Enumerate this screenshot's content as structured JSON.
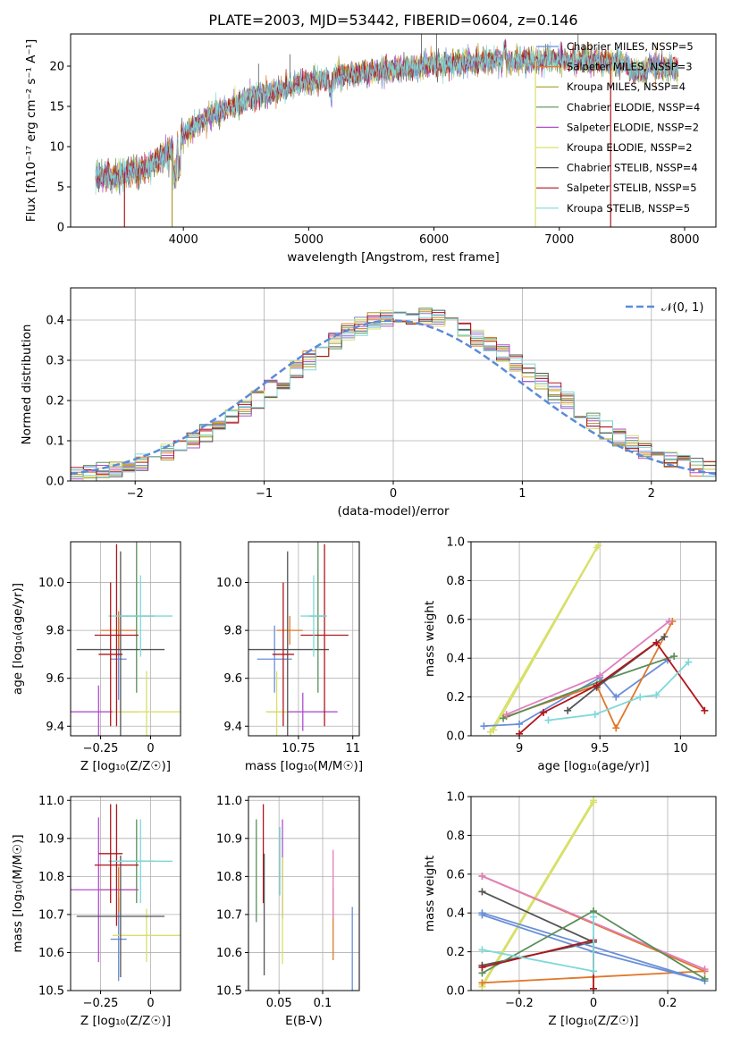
{
  "colors": {
    "chabrier_miles": "#6a8fd8",
    "salpeter_miles": "#e0782a",
    "kroupa_miles": "#a89a2c",
    "chabrier_elodie": "#5a8f5a",
    "salpeter_elodie": "#b04fcf",
    "kroupa_elodie": "#d8e06a",
    "chabrier_stelib": "#555555",
    "salpeter_stelib": "#b0171b",
    "kroupa_stelib": "#7fd8d8",
    "pink": "#e07fbf",
    "normal_curve": "#5b8bd8",
    "grid": "#b0b0b0"
  },
  "chart_data": [
    {
      "id": "spectrum",
      "type": "line",
      "title": "PLATE=2003, MJD=53442, FIBERID=0604, z=0.146",
      "xlabel": "wavelength [Angstrom, rest frame]",
      "ylabel": "Flux [fλ10⁻¹⁷ erg cm⁻² s⁻¹ A⁻¹]",
      "xlim": [
        3100,
        8250
      ],
      "ylim": [
        0,
        24
      ],
      "xticks": [
        4000,
        5000,
        6000,
        7000,
        8000
      ],
      "yticks": [
        0,
        5,
        10,
        15,
        20
      ],
      "grid": false,
      "legend_position": "upper-right",
      "legend": [
        "Chabrier MILES, NSSP=5",
        "Salpeter MILES, NSSP=3",
        "Kroupa MILES, NSSP=4",
        "Chabrier ELODIE, NSSP=4",
        "Salpeter ELODIE, NSSP=2",
        "Kroupa ELODIE, NSSP=2",
        "Chabrier STELIB, NSSP=4",
        "Salpeter STELIB, NSSP=5",
        "Kroupa STELIB, NSSP=5"
      ],
      "continuum": {
        "x": [
          3300,
          3500,
          3700,
          3900,
          4000,
          4200,
          4500,
          4800,
          5000,
          5200,
          5500,
          5800,
          6000,
          6200,
          6500,
          6800,
          7000,
          7300,
          7600,
          7800,
          8000
        ],
        "y": [
          6.2,
          6.5,
          7.4,
          9.5,
          11.5,
          13.8,
          15.8,
          17.3,
          18.0,
          18.6,
          19.3,
          19.8,
          20.1,
          20.4,
          20.6,
          20.7,
          20.8,
          20.6,
          20.3,
          19.9,
          19.6
        ]
      },
      "drop_lines_x": [
        3530,
        3910,
        6810,
        7410
      ],
      "spikes_x": [
        4600,
        4850,
        5900,
        6020,
        7150
      ]
    },
    {
      "id": "residuals",
      "type": "histogram",
      "xlabel": "(data-model)/error",
      "ylabel": "Normed distribution",
      "xlim": [
        -2.5,
        2.5
      ],
      "ylim": [
        0,
        0.48
      ],
      "xticks": [
        -2,
        -1,
        0,
        1,
        2
      ],
      "yticks": [
        0.0,
        0.1,
        0.2,
        0.3,
        0.4
      ],
      "grid": true,
      "bin_width": 0.1,
      "legend_position": "upper-right",
      "normal_label": "𝒩(0, 1)"
    },
    {
      "id": "z_vs_age",
      "type": "scatter",
      "xlabel": "Z [log₁₀(Z/Z☉)]",
      "ylabel": "age  [log₁₀(age/yr)]",
      "xlim": [
        -0.4,
        0.15
      ],
      "ylim": [
        9.36,
        10.17
      ],
      "xticks": [
        -0.25,
        0.0
      ],
      "yticks": [
        9.4,
        9.6,
        9.8,
        10.0
      ],
      "grid": true,
      "errorbars": [
        {
          "c": "chabrier_miles",
          "x": -0.16,
          "xerr": 0.04,
          "y": 9.68,
          "yerr": 0.17
        },
        {
          "c": "salpeter_miles",
          "x": -0.16,
          "xerr": 0.09,
          "y": 9.8,
          "yerr": 0.08
        },
        {
          "c": "chabrier_elodie",
          "x": -0.07,
          "xerr": 0.09,
          "y": 9.86,
          "yerr": 0.32
        },
        {
          "c": "salpeter_elodie",
          "x": -0.26,
          "xerr": 0.2,
          "y": 9.46,
          "yerr": 0.11
        },
        {
          "c": "kroupa_elodie",
          "x": -0.02,
          "xerr": 0.17,
          "y": 9.46,
          "yerr": 0.17
        },
        {
          "c": "chabrier_stelib",
          "x": -0.15,
          "xerr": 0.22,
          "y": 9.72,
          "yerr": 0.41
        },
        {
          "c": "salpeter_stelib",
          "x": -0.17,
          "xerr": 0.11,
          "y": 9.78,
          "yerr": 0.38
        },
        {
          "c": "kroupa_stelib",
          "x": -0.05,
          "xerr": 0.16,
          "y": 9.86,
          "yerr": 0.17
        },
        {
          "c": "salpeter_stelib",
          "x": -0.2,
          "xerr": 0.06,
          "y": 9.7,
          "yerr": 0.3
        }
      ]
    },
    {
      "id": "mass_vs_age",
      "type": "scatter",
      "xlabel": "mass [log₁₀(M/M☉)]",
      "ylabel": "",
      "xlim": [
        10.52,
        11.03
      ],
      "ylim": [
        9.36,
        10.17
      ],
      "xticks": [
        10.5,
        10.75,
        11.0
      ],
      "yticks": [
        9.4,
        9.6,
        9.8,
        10.0
      ],
      "grid": true,
      "errorbars": [
        {
          "c": "chabrier_miles",
          "x": 10.64,
          "xerr": 0.08,
          "y": 9.68,
          "yerr": 0.14
        },
        {
          "c": "salpeter_miles",
          "x": 10.71,
          "xerr": 0.06,
          "y": 9.8,
          "yerr": 0.06
        },
        {
          "c": "chabrier_elodie",
          "x": 10.84,
          "xerr": 0.04,
          "y": 9.86,
          "yerr": 0.32
        },
        {
          "c": "salpeter_elodie",
          "x": 10.77,
          "xerr": 0.16,
          "y": 9.46,
          "yerr": 0.08
        },
        {
          "c": "kroupa_elodie",
          "x": 10.65,
          "xerr": 0.05,
          "y": 9.46,
          "yerr": 0.17
        },
        {
          "c": "chabrier_stelib",
          "x": 10.7,
          "xerr": 0.19,
          "y": 9.72,
          "yerr": 0.41
        },
        {
          "c": "salpeter_stelib",
          "x": 10.87,
          "xerr": 0.11,
          "y": 9.78,
          "yerr": 0.38
        },
        {
          "c": "kroupa_stelib",
          "x": 10.82,
          "xerr": 0.06,
          "y": 9.86,
          "yerr": 0.17
        },
        {
          "c": "salpeter_stelib",
          "x": 10.68,
          "xerr": 0.05,
          "y": 9.7,
          "yerr": 0.3
        }
      ]
    },
    {
      "id": "age_vs_weight",
      "type": "line",
      "xlabel": "age  [log₁₀(age/yr)]",
      "ylabel": "mass weight",
      "xlim": [
        8.7,
        10.22
      ],
      "ylim": [
        0,
        1.0
      ],
      "xticks": [
        9.0,
        9.5,
        10.0
      ],
      "yticks": [
        0.0,
        0.2,
        0.4,
        0.6,
        0.8,
        1.0
      ],
      "grid": true,
      "series": [
        {
          "c": "kroupa_elodie",
          "x": [
            8.82,
            9.48
          ],
          "y": [
            0.02,
            0.97
          ]
        },
        {
          "c": "kroupa_elodie",
          "x": [
            8.84,
            9.49
          ],
          "y": [
            0.03,
            0.98
          ]
        },
        {
          "c": "chabrier_miles",
          "x": [
            8.78,
            9.0,
            9.5,
            9.6,
            9.92
          ],
          "y": [
            0.05,
            0.06,
            0.3,
            0.2,
            0.39
          ]
        },
        {
          "c": "salpeter_miles",
          "x": [
            8.92,
            9.48,
            9.6,
            9.95
          ],
          "y": [
            0.1,
            0.26,
            0.04,
            0.59
          ]
        },
        {
          "c": "chabrier_elodie",
          "x": [
            8.9,
            9.5,
            9.96
          ],
          "y": [
            0.09,
            0.28,
            0.41
          ]
        },
        {
          "c": "pink",
          "x": [
            8.92,
            9.5,
            9.93
          ],
          "y": [
            0.11,
            0.31,
            0.59
          ]
        },
        {
          "c": "chabrier_stelib",
          "x": [
            9.3,
            9.48,
            9.9
          ],
          "y": [
            0.13,
            0.25,
            0.51
          ]
        },
        {
          "c": "salpeter_stelib",
          "x": [
            9.0,
            9.15,
            9.48,
            9.85,
            10.15
          ],
          "y": [
            0.01,
            0.12,
            0.26,
            0.48,
            0.13
          ]
        },
        {
          "c": "kroupa_stelib",
          "x": [
            9.18,
            9.47,
            9.75,
            9.85,
            10.05
          ],
          "y": [
            0.08,
            0.11,
            0.2,
            0.21,
            0.38
          ]
        }
      ]
    },
    {
      "id": "z_vs_mass",
      "type": "scatter",
      "xlabel": "Z [log₁₀(Z/Z☉)]",
      "ylabel": "mass [log₁₀(M/M☉)]",
      "xlim": [
        -0.4,
        0.15
      ],
      "ylim": [
        10.5,
        11.01
      ],
      "xticks": [
        -0.25,
        0.0
      ],
      "yticks": [
        10.5,
        10.6,
        10.7,
        10.8,
        10.9,
        11.0
      ],
      "grid": true,
      "errorbars": [
        {
          "c": "chabrier_miles",
          "x": -0.16,
          "xerr": 0.04,
          "y": 10.635,
          "yerr": 0.11
        },
        {
          "c": "salpeter_miles",
          "x": -0.16,
          "xerr": 0.09,
          "y": 10.765,
          "yerr": 0.06
        },
        {
          "c": "chabrier_elodie",
          "x": -0.07,
          "xerr": 0.09,
          "y": 10.84,
          "yerr": 0.11
        },
        {
          "c": "salpeter_elodie",
          "x": -0.26,
          "xerr": 0.2,
          "y": 10.765,
          "yerr": 0.19
        },
        {
          "c": "kroupa_elodie",
          "x": -0.02,
          "xerr": 0.17,
          "y": 10.645,
          "yerr": 0.07
        },
        {
          "c": "chabrier_stelib",
          "x": -0.15,
          "xerr": 0.22,
          "y": 10.695,
          "yerr": 0.16
        },
        {
          "c": "salpeter_stelib",
          "x": -0.17,
          "xerr": 0.11,
          "y": 10.83,
          "yerr": 0.16
        },
        {
          "c": "kroupa_stelib",
          "x": -0.05,
          "xerr": 0.16,
          "y": 10.84,
          "yerr": 0.11
        },
        {
          "c": "salpeter_stelib",
          "x": -0.2,
          "xerr": 0.06,
          "y": 10.86,
          "yerr": 0.13
        }
      ]
    },
    {
      "id": "ebv_vs_mass",
      "type": "scatter",
      "xlabel": "E(B-V)",
      "ylabel": "",
      "xlim": [
        0.015,
        0.142
      ],
      "ylim": [
        10.5,
        11.01
      ],
      "xticks": [
        0.05,
        0.1
      ],
      "yticks": [
        10.5,
        10.6,
        10.7,
        10.8,
        10.9,
        11.0
      ],
      "grid": true,
      "errorbars": [
        {
          "c": "chabrier_elodie",
          "x": 0.024,
          "xerr": 0,
          "y": 10.815,
          "yerr": 0.135
        },
        {
          "c": "salpeter_stelib",
          "x": 0.032,
          "xerr": 0,
          "y": 10.86,
          "yerr": 0.13
        },
        {
          "c": "chabrier_stelib",
          "x": 0.033,
          "xerr": 0,
          "y": 10.7,
          "yerr": 0.16
        },
        {
          "c": "kroupa_stelib",
          "x": 0.051,
          "xerr": 0,
          "y": 10.84,
          "yerr": 0.09
        },
        {
          "c": "salpeter_elodie",
          "x": 0.054,
          "xerr": 0,
          "y": 10.82,
          "yerr": 0.13
        },
        {
          "c": "kroupa_elodie",
          "x": 0.054,
          "xerr": 0,
          "y": 10.71,
          "yerr": 0.14
        },
        {
          "c": "salpeter_miles",
          "x": 0.112,
          "xerr": 0,
          "y": 10.675,
          "yerr": 0.095
        },
        {
          "c": "pink",
          "x": 0.112,
          "xerr": 0,
          "y": 10.78,
          "yerr": 0.09
        },
        {
          "c": "chabrier_miles",
          "x": 0.134,
          "xerr": 0,
          "y": 10.605,
          "yerr": 0.115
        }
      ]
    },
    {
      "id": "z_vs_weight",
      "type": "line",
      "xlabel": "Z [log₁₀(Z/Z☉)]",
      "ylabel": "mass weight",
      "xlim": [
        -0.33,
        0.33
      ],
      "ylim": [
        0,
        1.0
      ],
      "xticks": [
        -0.2,
        0.0,
        0.2
      ],
      "yticks": [
        0.0,
        0.2,
        0.4,
        0.6,
        0.8,
        1.0
      ],
      "grid": true,
      "series": [
        {
          "c": "kroupa_elodie",
          "x": [
            -0.3,
            0.0
          ],
          "y": [
            0.02,
            0.97
          ]
        },
        {
          "c": "kroupa_elodie",
          "x": [
            -0.3,
            0.0
          ],
          "y": [
            0.03,
            0.98
          ]
        },
        {
          "c": "salpeter_miles",
          "x": [
            -0.3,
            0.3,
            -0.3,
            0.0,
            0.3
          ],
          "y": [
            0.59,
            0.1,
            0.04,
            0.07,
            0.1
          ]
        },
        {
          "c": "pink",
          "x": [
            -0.3,
            0.3
          ],
          "y": [
            0.59,
            0.11
          ]
        },
        {
          "c": "chabrier_stelib",
          "x": [
            -0.3,
            0.0,
            -0.3
          ],
          "y": [
            0.51,
            0.25,
            0.13
          ]
        },
        {
          "c": "chabrier_miles",
          "x": [
            -0.3,
            0.0,
            0.3,
            -0.3
          ],
          "y": [
            0.39,
            0.2,
            0.05,
            0.4
          ]
        },
        {
          "c": "chabrier_elodie",
          "x": [
            -0.3,
            0.0,
            0.3
          ],
          "y": [
            0.09,
            0.41,
            0.06
          ]
        },
        {
          "c": "salpeter_stelib",
          "x": [
            -0.3,
            0.0,
            0.0
          ],
          "y": [
            0.12,
            0.26,
            0.01
          ]
        },
        {
          "c": "kroupa_stelib",
          "x": [
            -0.3,
            0.0,
            0.0
          ],
          "y": [
            0.21,
            0.1,
            0.38
          ]
        }
      ]
    }
  ]
}
